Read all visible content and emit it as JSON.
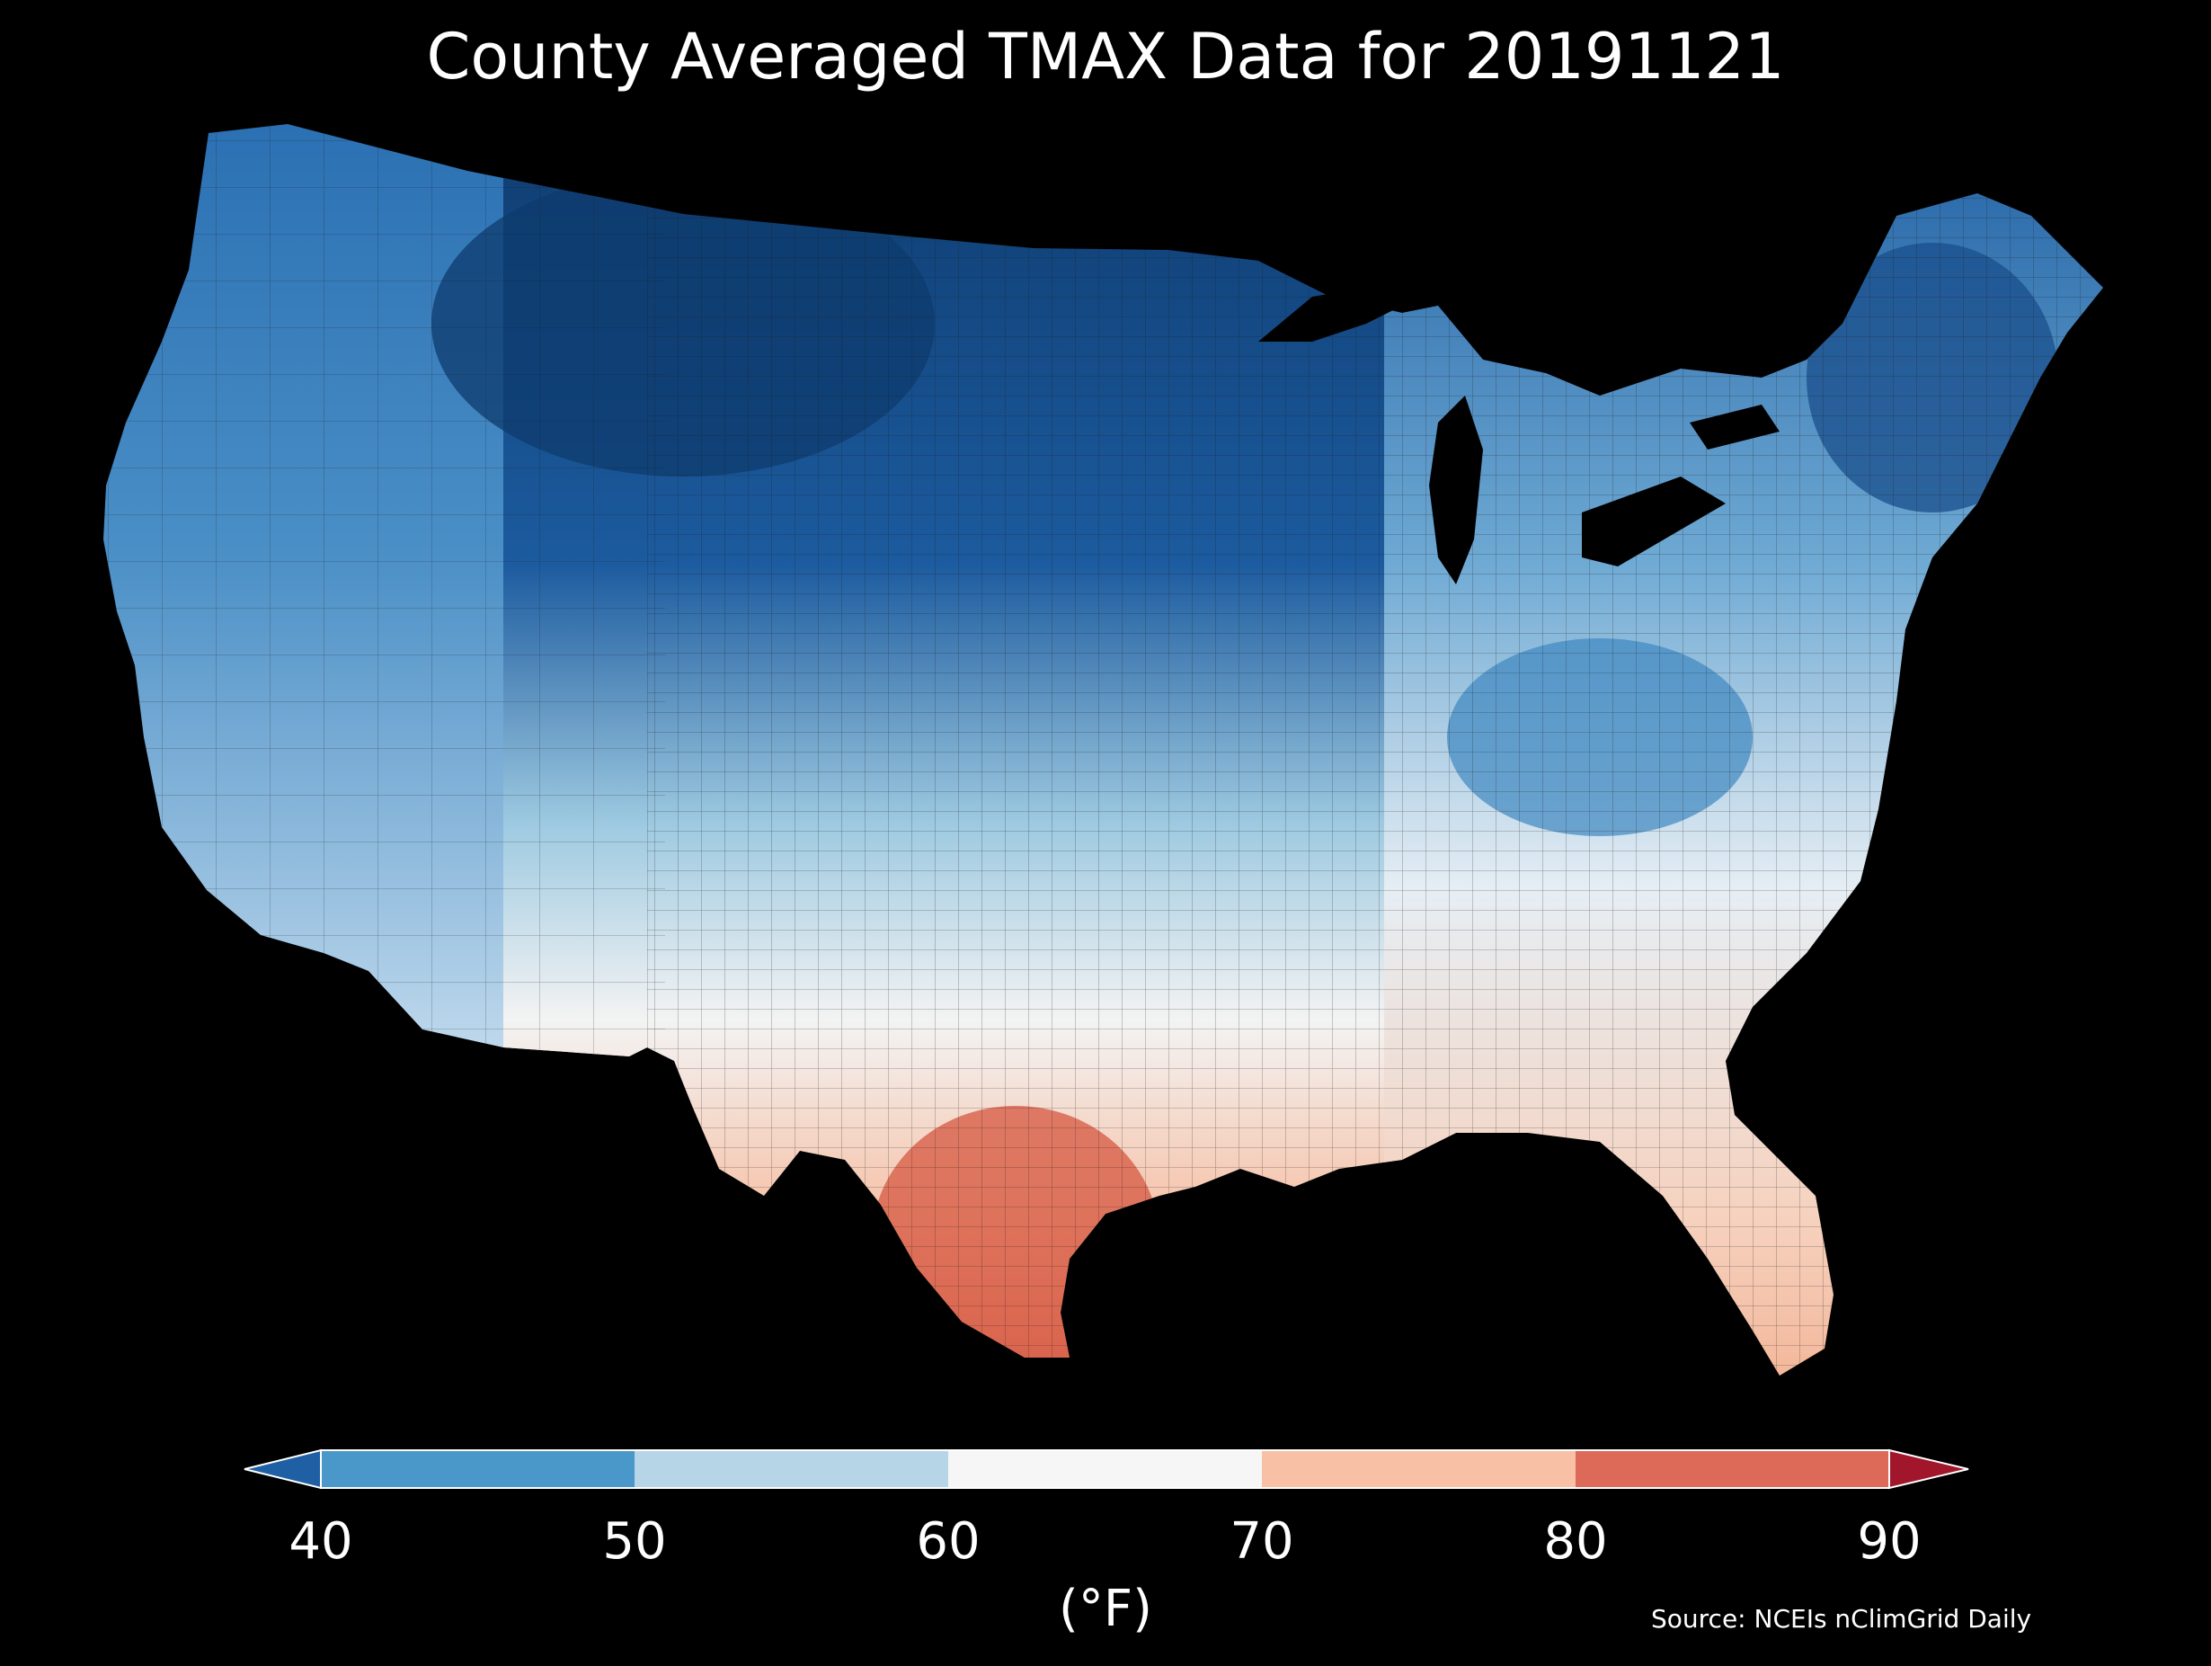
{
  "title": "County Averaged TMAX Data for 20191121",
  "source": "Source: NCEIs nClimGrid Daily",
  "colorbar": {
    "label": "(°F)",
    "ticks": [
      "40",
      "50",
      "60",
      "70",
      "80",
      "90"
    ],
    "colors": {
      "below": "#1f5fa3",
      "40-50": "#4a97c9",
      "50-60": "#b6d6e8",
      "60-70": "#f6f6f6",
      "70-80": "#f8c0a4",
      "80-90": "#dd6a58",
      "above": "#a1162b"
    }
  },
  "map": {
    "region": "contiguous-united-states",
    "colors": {
      "very_cold": "#0e3b6e",
      "cold": "#1f5fa3",
      "cool": "#4a97c9",
      "mild_cool": "#9ecae1",
      "neutral": "#f0f2f4",
      "warm": "#f8c8b0",
      "hot": "#e07a62",
      "water": "#000000",
      "county_lines": "#1a1a1a"
    }
  }
}
